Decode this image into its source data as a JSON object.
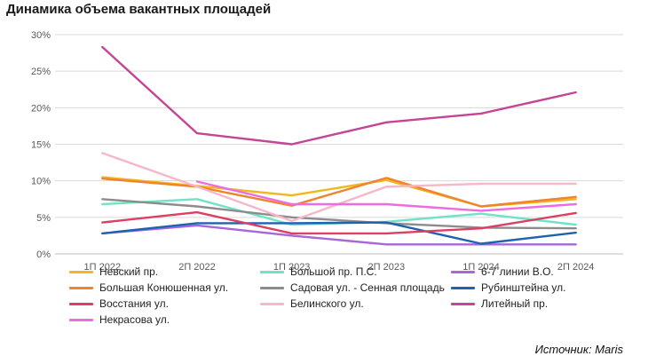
{
  "chart_data": {
    "type": "line",
    "title": "Динамика объема вакантных площадей",
    "xlabel": "",
    "ylabel": "",
    "categories": [
      "1П 2022",
      "2П 2022",
      "1П 2023",
      "2П 2023",
      "1П 2024",
      "2П 2024"
    ],
    "ylim": [
      0,
      30
    ],
    "yticks": [
      "0%",
      "5%",
      "10%",
      "15%",
      "20%",
      "25%",
      "30%"
    ],
    "grid": true,
    "legend_position": "bottom",
    "series": [
      {
        "name": "Невский пр.",
        "color": "#F2B71F",
        "values": [
          10.5,
          9.3,
          8.0,
          10.1,
          6.5,
          7.5
        ]
      },
      {
        "name": "Большой пр. П.С.",
        "color": "#6FE3C6",
        "values": [
          6.8,
          7.5,
          4.0,
          4.4,
          5.5,
          4.0
        ]
      },
      {
        "name": "6-7 линии В.О.",
        "color": "#A866D9",
        "values": [
          2.8,
          3.9,
          2.5,
          1.3,
          1.3,
          1.3
        ]
      },
      {
        "name": "Большая Конюшенная ул.",
        "color": "#F0832E",
        "values": [
          10.3,
          9.2,
          6.6,
          10.4,
          6.5,
          7.8
        ]
      },
      {
        "name": "Садовая ул. - Сенная площадь",
        "color": "#8C8C8C",
        "values": [
          7.5,
          6.5,
          5.0,
          4.2,
          3.6,
          3.5
        ]
      },
      {
        "name": "Рубинштейна ул.",
        "color": "#1F62B0",
        "values": [
          2.8,
          4.2,
          4.2,
          4.3,
          1.4,
          2.9
        ]
      },
      {
        "name": "Восстания ул.",
        "color": "#DD3F63",
        "values": [
          4.3,
          5.7,
          2.8,
          2.8,
          3.5,
          5.6
        ]
      },
      {
        "name": "Белинского ул.",
        "color": "#F5B7C9",
        "values": [
          13.8,
          9.2,
          4.5,
          9.2,
          9.6,
          9.6
        ]
      },
      {
        "name": "Литейный пр.",
        "color": "#C44596",
        "values": [
          28.3,
          16.5,
          15.0,
          18.0,
          19.2,
          22.1
        ]
      },
      {
        "name": "Некрасова ул.",
        "color": "#EE6BE0",
        "values": [
          null,
          9.9,
          6.8,
          6.8,
          5.9,
          6.8
        ]
      }
    ]
  },
  "source": "Источник:  Maris"
}
